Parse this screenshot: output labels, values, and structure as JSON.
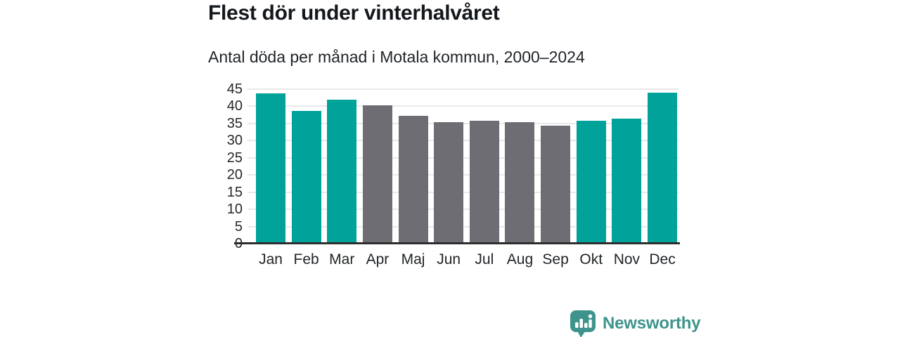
{
  "header": {
    "title": "Flest dör under vinterhalvåret",
    "subtitle": "Antal döda per månad i Motala kommun, 2000–2024"
  },
  "chart_data": {
    "type": "bar",
    "title": "Flest dör under vinterhalvåret",
    "subtitle": "Antal döda per månad i Motala kommun, 2000–2024",
    "categories": [
      "Jan",
      "Feb",
      "Mar",
      "Apr",
      "Maj",
      "Jun",
      "Jul",
      "Aug",
      "Sep",
      "Okt",
      "Nov",
      "Dec"
    ],
    "values": [
      43.8,
      38.7,
      42.0,
      40.2,
      37.2,
      35.4,
      35.9,
      35.3,
      34.4,
      35.7,
      36.4,
      44.0
    ],
    "bar_colors": [
      "teal",
      "teal",
      "teal",
      "gray",
      "gray",
      "gray",
      "gray",
      "gray",
      "gray",
      "teal",
      "teal",
      "teal"
    ],
    "colors": {
      "teal": "#00a29a",
      "gray": "#6e6d73",
      "grid": "#e9e9e9",
      "axis": "#2d2d2d"
    },
    "xlabel": "",
    "ylabel": "",
    "ylim": [
      0,
      45
    ],
    "yticks": [
      0,
      5,
      10,
      15,
      20,
      25,
      30,
      35,
      40,
      45
    ],
    "grid": true,
    "legend": false
  },
  "footer": {
    "brand": "Newsworthy",
    "brand_color": "#3e948c",
    "logo_icon": "bar-chart-speech-bubble-icon"
  }
}
